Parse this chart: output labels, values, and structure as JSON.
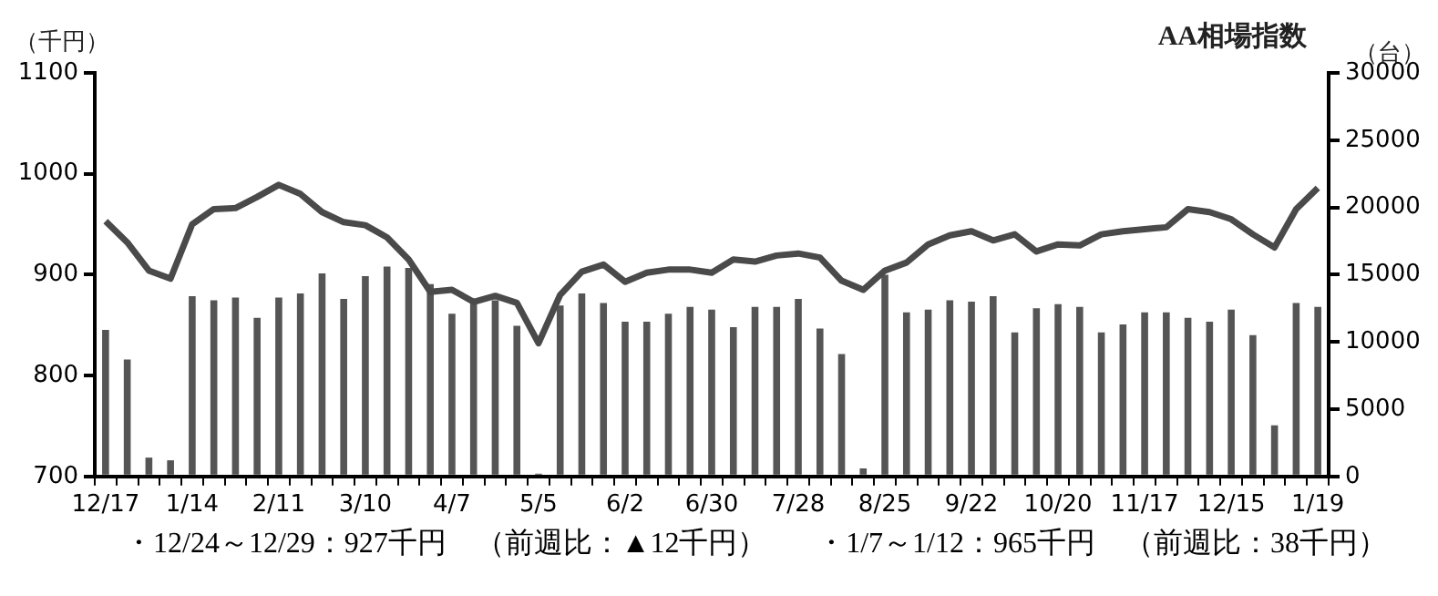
{
  "chart_data": {
    "type": "bar",
    "title": "AA相場指数",
    "ylabel": "（千円）",
    "y2label": "（台）",
    "categories": [
      "12/17",
      null,
      null,
      null,
      "1/14",
      null,
      null,
      null,
      "2/11",
      null,
      null,
      null,
      "3/10",
      null,
      null,
      null,
      "4/7",
      null,
      null,
      null,
      "5/5",
      null,
      null,
      null,
      "6/2",
      null,
      null,
      null,
      "6/30",
      null,
      null,
      null,
      "7/28",
      null,
      null,
      null,
      "8/25",
      null,
      null,
      null,
      "9/22",
      null,
      null,
      null,
      "10/20",
      null,
      null,
      null,
      "11/17",
      null,
      null,
      null,
      "12/15",
      null,
      null,
      null,
      "1/19"
    ],
    "series": [
      {
        "axis": "y2",
        "color": "#555555",
        "values": [
          10900,
          8700,
          1400,
          1200,
          13400,
          13100,
          13300,
          11800,
          13300,
          13600,
          15100,
          13200,
          14900,
          15600,
          15500,
          14300,
          12100,
          12900,
          13100,
          11200,
          200,
          12700,
          13600,
          12900,
          11500,
          11500,
          12100,
          12600,
          12400,
          11100,
          12600,
          12600,
          13200,
          11000,
          9100,
          600,
          15000,
          12200,
          12400,
          13100,
          13000,
          13400,
          10700,
          12500,
          12800,
          12600,
          10700,
          11300,
          12200,
          12200,
          11800,
          11500,
          12400,
          10500,
          3800,
          12900,
          12600
        ]
      },
      {
        "type": "line",
        "axis": "y",
        "color": "#4a4a4a",
        "values": [
          953,
          932,
          904,
          896,
          950,
          965,
          966,
          977,
          989,
          980,
          962,
          952,
          949,
          937,
          915,
          883,
          885,
          873,
          879,
          872,
          832,
          880,
          903,
          910,
          893,
          902,
          905,
          905,
          902,
          915,
          913,
          919,
          921,
          917,
          894,
          885,
          904,
          912,
          930,
          939,
          943,
          934,
          940,
          923,
          930,
          929,
          940,
          943,
          945,
          947,
          965,
          962,
          955,
          940,
          927,
          965,
          986
        ]
      }
    ],
    "ylim": [
      700,
      1100
    ],
    "yticks": [
      700,
      800,
      900,
      1000,
      1100
    ],
    "y2lim": [
      0,
      30000
    ],
    "y2ticks": [
      0,
      5000,
      10000,
      15000,
      20000,
      25000,
      30000
    ],
    "grid": false,
    "legend": false,
    "marker": "none",
    "annotations": [
      "・12/24～12/29：927千円　（前週比：▲12千円）",
      "・1/7～1/12：965千円　（前週比：38千円）"
    ]
  }
}
